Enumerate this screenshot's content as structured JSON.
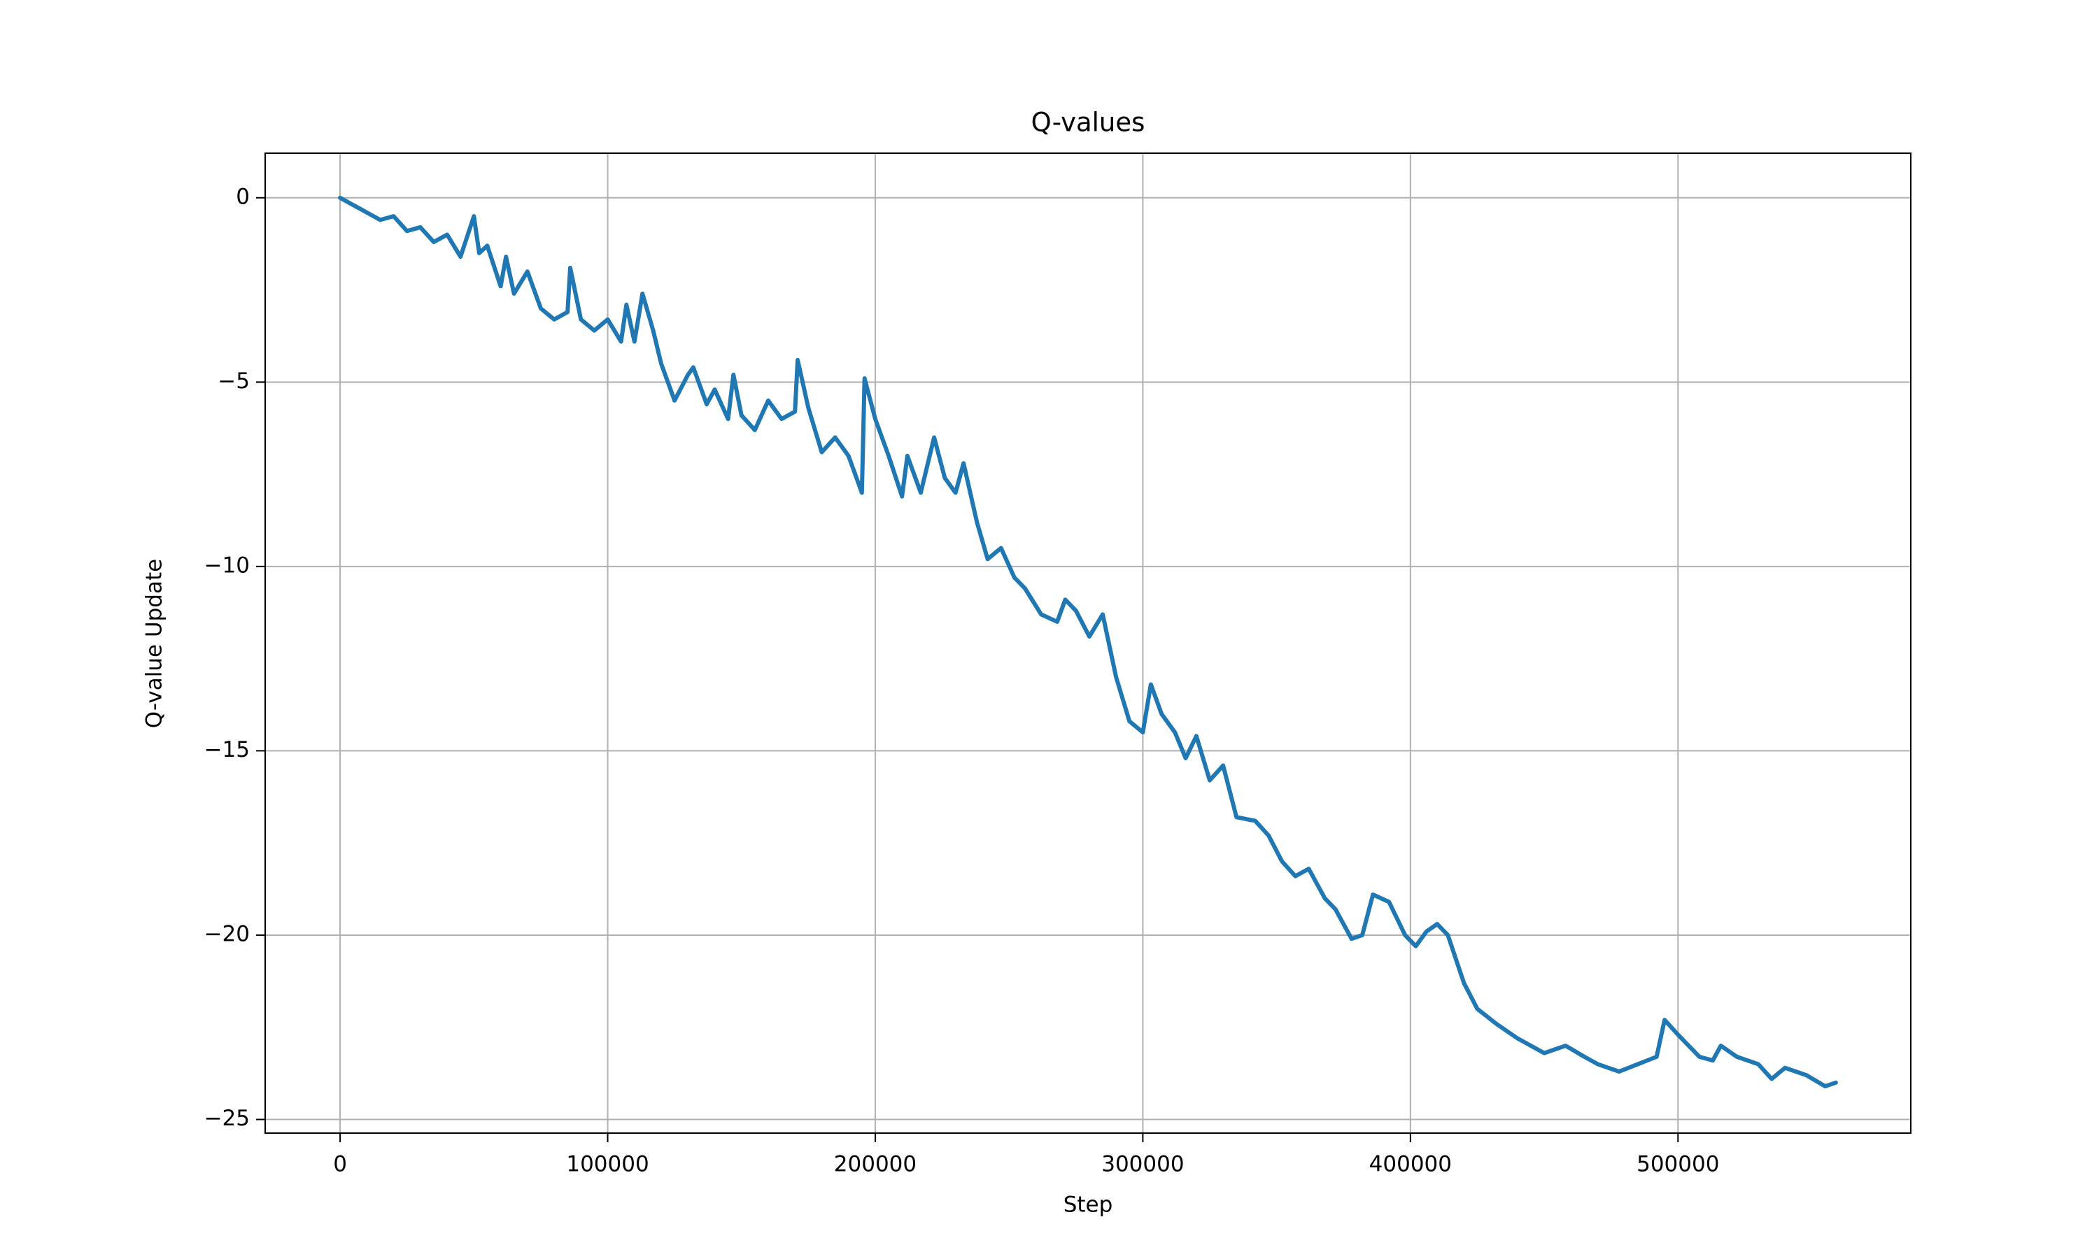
{
  "chart_data": {
    "type": "line",
    "title": "Q-values",
    "x_label": "Step",
    "y_label": "Q-value Update",
    "xlim": [
      -28000,
      587000
    ],
    "ylim": [
      -25.37,
      1.21
    ],
    "xticks": [
      0,
      100000,
      200000,
      300000,
      400000,
      500000
    ],
    "yticks": [
      0,
      {
        "value": -5,
        "label": "−5"
      },
      {
        "value": -10,
        "label": "−10"
      },
      {
        "value": -15,
        "label": "−15"
      },
      {
        "value": -20,
        "label": "−20"
      },
      {
        "value": -25,
        "label": "−25"
      }
    ],
    "grid": true,
    "series": [
      {
        "color": "#1f77b4",
        "x": [
          0,
          5000,
          10000,
          15000,
          20000,
          25000,
          30000,
          35000,
          40000,
          45000,
          50000,
          52000,
          55000,
          60000,
          62000,
          65000,
          70000,
          75000,
          80000,
          85000,
          86000,
          90000,
          95000,
          100000,
          105000,
          107000,
          110000,
          113000,
          117000,
          120000,
          125000,
          130000,
          132000,
          137000,
          140000,
          145000,
          147000,
          150000,
          155000,
          160000,
          165000,
          170000,
          171000,
          175000,
          180000,
          185000,
          190000,
          195000,
          196000,
          200000,
          205000,
          210000,
          212000,
          217000,
          222000,
          226000,
          230000,
          233000,
          238000,
          242000,
          247000,
          252000,
          256000,
          262000,
          268000,
          271000,
          275000,
          280000,
          285000,
          290000,
          295000,
          300000,
          303000,
          307000,
          312000,
          316000,
          320000,
          325000,
          330000,
          335000,
          342000,
          347000,
          352000,
          357000,
          362000,
          368000,
          372000,
          378000,
          382000,
          386000,
          392000,
          398000,
          402000,
          406000,
          410000,
          414000,
          420000,
          425000,
          432000,
          440000,
          450000,
          458000,
          465000,
          470000,
          478000,
          485000,
          492000,
          495000,
          500000,
          508000,
          513000,
          516000,
          522000,
          530000,
          535000,
          540000,
          548000,
          555000,
          559000
        ],
        "values": [
          0,
          -0.2,
          -0.4,
          -0.6,
          -0.5,
          -0.9,
          -0.8,
          -1.2,
          -1.0,
          -1.6,
          -0.5,
          -1.5,
          -1.3,
          -2.4,
          -1.6,
          -2.6,
          -2.0,
          -3.0,
          -3.3,
          -3.1,
          -1.9,
          -3.3,
          -3.6,
          -3.3,
          -3.9,
          -2.9,
          -3.9,
          -2.6,
          -3.6,
          -4.5,
          -5.5,
          -4.8,
          -4.6,
          -5.6,
          -5.2,
          -6.0,
          -4.8,
          -5.9,
          -6.3,
          -5.5,
          -6.0,
          -5.8,
          -4.4,
          -5.7,
          -6.9,
          -6.5,
          -7.0,
          -8.0,
          -4.9,
          -6.0,
          -7.0,
          -8.1,
          -7.0,
          -8.0,
          -6.5,
          -7.6,
          -8.0,
          -7.2,
          -8.8,
          -9.8,
          -9.5,
          -10.3,
          -10.6,
          -11.3,
          -11.5,
          -10.9,
          -11.2,
          -11.9,
          -11.3,
          -13.0,
          -14.2,
          -14.5,
          -13.2,
          -14.0,
          -14.5,
          -15.2,
          -14.6,
          -15.8,
          -15.4,
          -16.8,
          -16.9,
          -17.3,
          -18.0,
          -18.4,
          -18.2,
          -19.0,
          -19.3,
          -20.1,
          -20.0,
          -18.9,
          -19.1,
          -20.0,
          -20.3,
          -19.9,
          -19.7,
          -20.0,
          -21.3,
          -22.0,
          -22.4,
          -22.8,
          -23.2,
          -23.0,
          -23.3,
          -23.5,
          -23.7,
          -23.5,
          -23.3,
          -22.3,
          -22.7,
          -23.3,
          -23.4,
          -23.0,
          -23.3,
          -23.5,
          -23.9,
          -23.6,
          -23.8,
          -24.1,
          -24.0
        ]
      }
    ]
  }
}
